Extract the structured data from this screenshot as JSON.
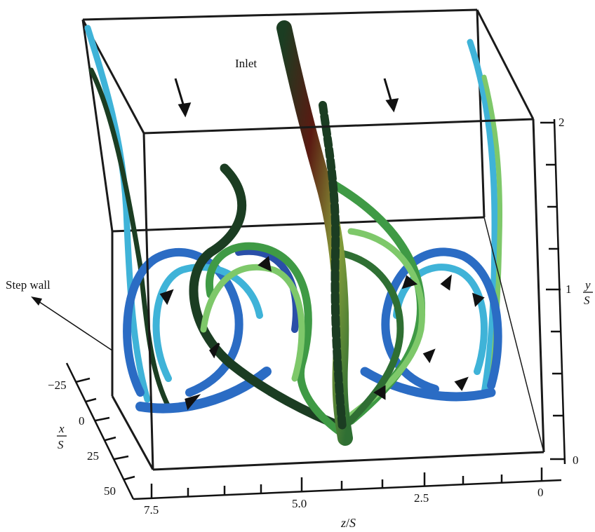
{
  "annotations": {
    "inlet": "Inlet",
    "step_wall": "Step wall"
  },
  "axes": {
    "z": {
      "label_var": "z",
      "label_sep": "/",
      "label_unit": "S",
      "ticks": [
        "7.5",
        "5.0",
        "2.5",
        "0"
      ]
    },
    "y": {
      "label_num": "y",
      "label_den": "S",
      "ticks": [
        "2",
        "1",
        "0"
      ]
    },
    "x": {
      "label_num": "x",
      "label_den": "S",
      "ticks": [
        "−25",
        "0",
        "25",
        "50"
      ]
    }
  },
  "colors": {
    "frame": "#1a1a1a",
    "dark_green": "#1b3d22",
    "green": "#3f9a45",
    "light_green": "#7ec86a",
    "cyan": "#3fb3d8",
    "blue": "#2b6cc4",
    "deep_blue": "#2a4fa8",
    "dark_red": "#5a1a12"
  }
}
